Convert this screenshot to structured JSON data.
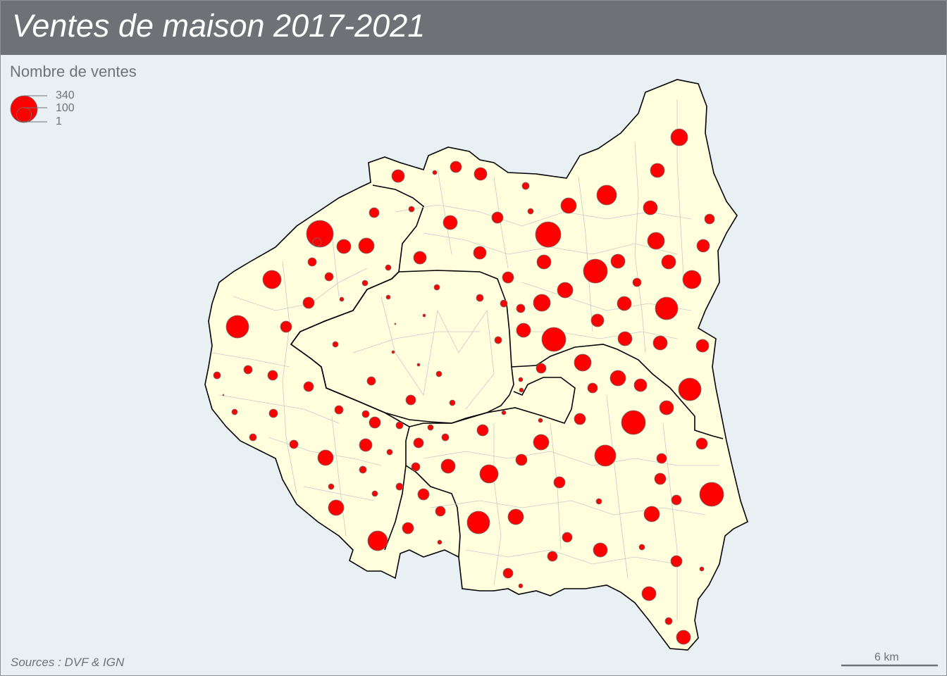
{
  "title": "Ventes de maison 2017-2021",
  "legend": {
    "title": "Nombre de ventes",
    "values": [
      "340",
      "100",
      "1"
    ]
  },
  "source": "Sources : DVF & IGN",
  "scale_bar": "6 km",
  "colors": {
    "header": "#6e7276",
    "sea": "#e9f0f3",
    "land": "#ffffdd",
    "circle": "#ff0000",
    "border": "#000000",
    "commune_border": "#c9c9c9"
  },
  "symbols": [
    {
      "commune": "",
      "ventes": 120
    },
    {
      "commune": "",
      "ventes": 45
    }
  ]
}
